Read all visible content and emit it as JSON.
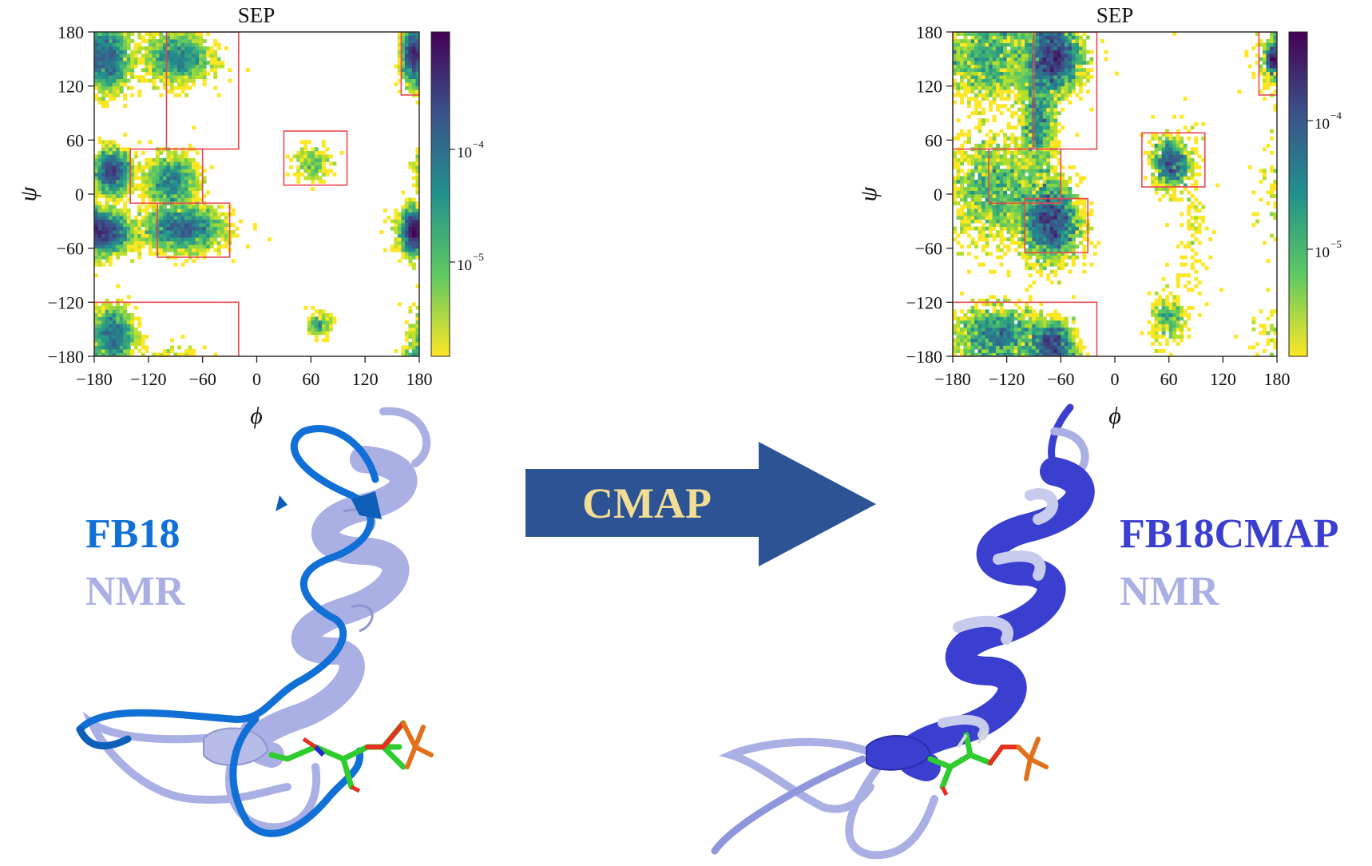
{
  "chart_data": [
    {
      "type": "heatmap",
      "title": "SEP",
      "xlabel": "ϕ",
      "ylabel": "ψ",
      "xlim": [
        -180,
        180
      ],
      "ylim": [
        -180,
        180
      ],
      "xticks": [
        "−180",
        "−120",
        "−60",
        "0",
        "60",
        "120",
        "180"
      ],
      "yticks": [
        "180",
        "120",
        "60",
        "0",
        "−60",
        "−120",
        "−180"
      ],
      "colorbar": {
        "scale": "log",
        "range": [
          2e-06,
          0.0009
        ],
        "tick_base": "10",
        "tick_exponents": [
          "−4",
          "−5"
        ]
      },
      "clusters": [
        {
          "phi": -170,
          "psi": -42,
          "spread_phi": 14,
          "spread_psi": 12,
          "density": 1.0
        },
        {
          "phi": -82,
          "psi": -38,
          "spread_phi": 22,
          "spread_psi": 12,
          "density": 0.95
        },
        {
          "phi": -165,
          "psi": 150,
          "spread_phi": 12,
          "spread_psi": 18,
          "density": 0.75
        },
        {
          "phi": -88,
          "psi": 152,
          "spread_phi": 18,
          "spread_psi": 14,
          "density": 0.6
        },
        {
          "phi": -160,
          "psi": 25,
          "spread_phi": 10,
          "spread_psi": 12,
          "density": 0.65
        },
        {
          "phi": -95,
          "psi": 15,
          "spread_phi": 14,
          "spread_psi": 14,
          "density": 0.5
        },
        {
          "phi": -160,
          "psi": -155,
          "spread_phi": 12,
          "spread_psi": 15,
          "density": 0.55
        },
        {
          "phi": 173,
          "psi": 155,
          "spread_phi": 6,
          "spread_psi": 15,
          "density": 0.55
        },
        {
          "phi": 173,
          "psi": -40,
          "spread_phi": 6,
          "spread_psi": 12,
          "density": 0.45
        },
        {
          "phi": 60,
          "psi": 35,
          "spread_phi": 10,
          "spread_psi": 10,
          "density": 0.08
        },
        {
          "phi": 70,
          "psi": -145,
          "spread_phi": 6,
          "spread_psi": 6,
          "density": 0.06
        }
      ],
      "regions": [
        {
          "phi": [
            -100,
            -20
          ],
          "psi": [
            50,
            180
          ]
        },
        {
          "phi": [
            -140,
            -60
          ],
          "psi": [
            -10,
            50
          ]
        },
        {
          "phi": [
            -110,
            -30
          ],
          "psi": [
            -70,
            -10
          ]
        },
        {
          "phi": [
            -180,
            -20
          ],
          "psi": [
            -180,
            -120
          ]
        },
        {
          "phi": [
            30,
            100
          ],
          "psi": [
            10,
            70
          ]
        },
        {
          "phi": [
            160,
            180
          ],
          "psi": [
            110,
            180
          ]
        }
      ]
    },
    {
      "type": "heatmap",
      "title": "SEP",
      "xlabel": "ϕ",
      "ylabel": "ψ",
      "xlim": [
        -180,
        180
      ],
      "ylim": [
        -180,
        180
      ],
      "xticks": [
        "−180",
        "−120",
        "−60",
        "0",
        "60",
        "120",
        "180"
      ],
      "yticks": [
        "180",
        "120",
        "60",
        "0",
        "−60",
        "−120",
        "−180"
      ],
      "colorbar": {
        "scale": "log",
        "range": [
          1.5e-06,
          0.0004
        ],
        "tick_base": "10",
        "tick_exponents": [
          "−4",
          "−5"
        ]
      },
      "clusters": [
        {
          "phi": -72,
          "psi": -30,
          "spread_phi": 16,
          "spread_psi": 22,
          "density": 1.0
        },
        {
          "phi": -68,
          "psi": 150,
          "spread_phi": 16,
          "spread_psi": 18,
          "density": 0.95
        },
        {
          "phi": -140,
          "psi": 150,
          "spread_phi": 25,
          "spread_psi": 25,
          "density": 0.55
        },
        {
          "phi": -135,
          "psi": 5,
          "spread_phi": 25,
          "spread_psi": 30,
          "density": 0.6
        },
        {
          "phi": -85,
          "psi": 80,
          "spread_phi": 10,
          "spread_psi": 30,
          "density": 0.4
        },
        {
          "phi": -130,
          "psi": -155,
          "spread_phi": 25,
          "spread_psi": 15,
          "density": 0.55
        },
        {
          "phi": -70,
          "psi": -165,
          "spread_phi": 12,
          "spread_psi": 12,
          "density": 0.4
        },
        {
          "phi": 62,
          "psi": 35,
          "spread_phi": 10,
          "spread_psi": 14,
          "density": 0.35
        },
        {
          "phi": 60,
          "psi": -140,
          "spread_phi": 10,
          "spread_psi": 14,
          "density": 0.1
        },
        {
          "phi": 85,
          "psi": -20,
          "spread_phi": 10,
          "spread_psi": 50,
          "density": 0.04
        },
        {
          "phi": 175,
          "psi": 150,
          "spread_phi": 4,
          "spread_psi": 10,
          "density": 0.15
        }
      ],
      "regions": [
        {
          "phi": [
            -90,
            -20
          ],
          "psi": [
            50,
            180
          ]
        },
        {
          "phi": [
            -140,
            -60
          ],
          "psi": [
            -10,
            50
          ]
        },
        {
          "phi": [
            -180,
            -90
          ],
          "psi": [
            50,
            180
          ]
        },
        {
          "phi": [
            -100,
            -30
          ],
          "psi": [
            -65,
            -5
          ]
        },
        {
          "phi": [
            -180,
            -20
          ],
          "psi": [
            -180,
            -120
          ]
        },
        {
          "phi": [
            30,
            100
          ],
          "psi": [
            8,
            68
          ]
        },
        {
          "phi": [
            160,
            180
          ],
          "psi": [
            110,
            180
          ]
        }
      ]
    }
  ],
  "arrow_label": "CMAP",
  "left_structure": {
    "label_model": "FB18",
    "label_ref": "NMR"
  },
  "right_structure": {
    "label_model": "FB18CMAP",
    "label_ref": "NMR"
  },
  "colors": {
    "fb18": "#1170d6",
    "fb18cmap": "#3b3fcf",
    "nmr": "#aab0e4",
    "arrow": "#2c5494",
    "arrow_text": "#f2dd95",
    "region": "#e8474c"
  }
}
